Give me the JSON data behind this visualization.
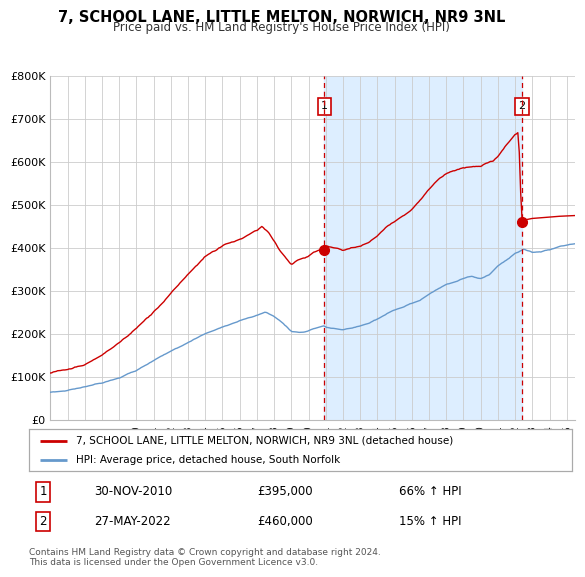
{
  "title": "7, SCHOOL LANE, LITTLE MELTON, NORWICH, NR9 3NL",
  "subtitle": "Price paid vs. HM Land Registry's House Price Index (HPI)",
  "hpi_label": "HPI: Average price, detached house, South Norfolk",
  "property_label": "7, SCHOOL LANE, LITTLE MELTON, NORWICH, NR9 3NL (detached house)",
  "annotation1_date": "30-NOV-2010",
  "annotation1_price": "£395,000",
  "annotation1_hpi": "66% ↑ HPI",
  "annotation2_date": "27-MAY-2022",
  "annotation2_price": "£460,000",
  "annotation2_hpi": "15% ↑ HPI",
  "footnote": "Contains HM Land Registry data © Crown copyright and database right 2024.\nThis data is licensed under the Open Government Licence v3.0.",
  "property_color": "#cc0000",
  "hpi_color": "#6699cc",
  "annotation_color": "#cc0000",
  "highlight_color": "#ddeeff",
  "background_color": "#ffffff",
  "plot_bg_color": "#ffffff",
  "ylim": [
    0,
    800000
  ],
  "yticks": [
    0,
    100000,
    200000,
    300000,
    400000,
    500000,
    600000,
    700000,
    800000
  ],
  "ytick_labels": [
    "£0",
    "£100K",
    "£200K",
    "£300K",
    "£400K",
    "£500K",
    "£600K",
    "£700K",
    "£800K"
  ],
  "ann1_x": 2010.92,
  "ann1_y": 395000,
  "ann2_x": 2022.38,
  "ann2_y": 460000,
  "xmin": 1995.0,
  "xmax": 2025.5
}
